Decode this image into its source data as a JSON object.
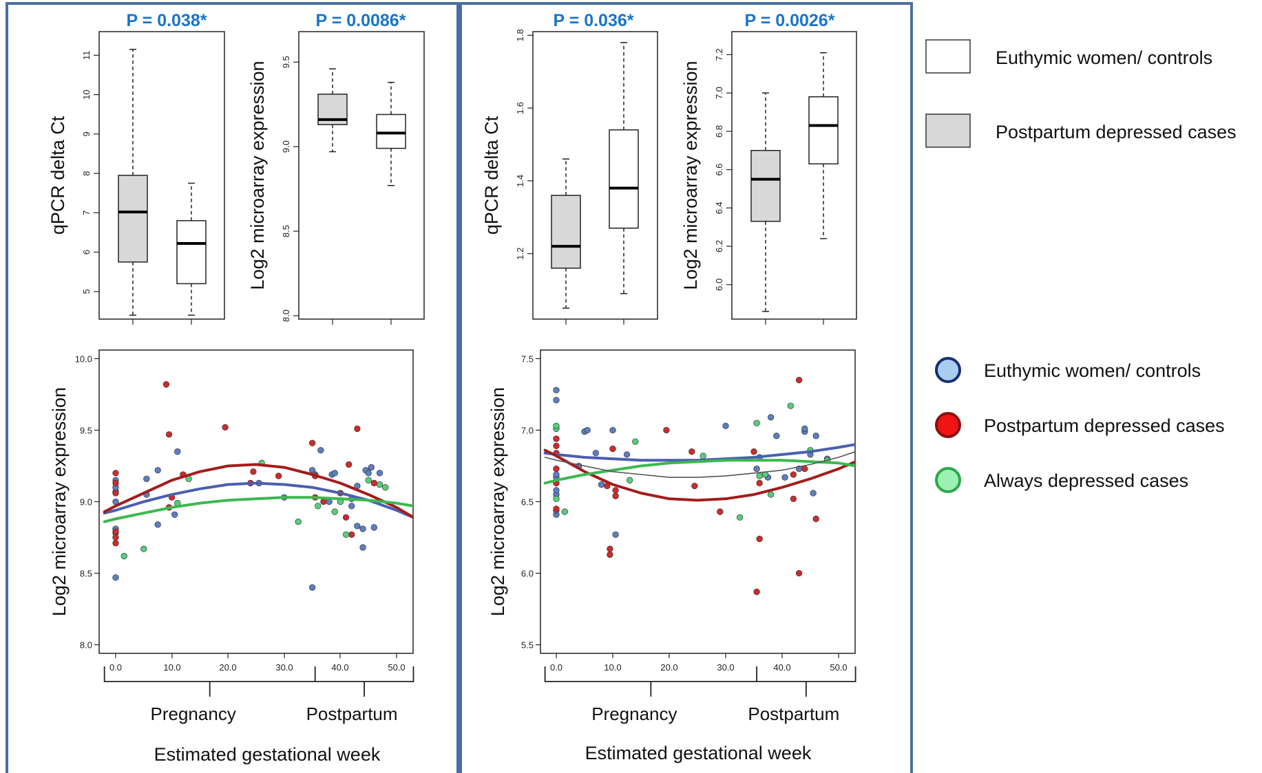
{
  "chart_data": [
    {
      "type": "box",
      "title": "P = 0.038*",
      "ylabel": "qPCR delta Ct",
      "ylim": [
        4.3,
        11.6
      ],
      "yticks": [
        5,
        6,
        7,
        8,
        9,
        10,
        11
      ],
      "boxes": [
        {
          "group": "Postpartum depressed cases",
          "min": 4.4,
          "q1": 5.75,
          "median": 7.02,
          "q3": 7.95,
          "max": 11.15
        },
        {
          "group": "Euthymic women/ controls",
          "min": 4.4,
          "q1": 5.2,
          "median": 6.22,
          "q3": 6.8,
          "max": 7.75
        }
      ]
    },
    {
      "type": "box",
      "title": "P = 0.0086*",
      "ylabel": "Log2 microarray expression",
      "ylim": [
        7.98,
        9.68
      ],
      "yticks": [
        8.0,
        8.5,
        9.0,
        9.5
      ],
      "boxes": [
        {
          "group": "Postpartum depressed cases",
          "min": 8.97,
          "q1": 9.13,
          "median": 9.16,
          "q3": 9.31,
          "max": 9.46
        },
        {
          "group": "Euthymic women/ controls",
          "min": 8.77,
          "q1": 8.99,
          "median": 9.08,
          "q3": 9.19,
          "max": 9.38
        }
      ]
    },
    {
      "type": "box",
      "title": "P = 0.036*",
      "ylabel": "qPCR delta Ct",
      "ylim": [
        1.02,
        1.81
      ],
      "yticks": [
        1.2,
        1.4,
        1.6,
        1.8
      ],
      "boxes": [
        {
          "group": "Postpartum depressed cases",
          "min": 1.05,
          "q1": 1.16,
          "median": 1.22,
          "q3": 1.36,
          "max": 1.46
        },
        {
          "group": "Euthymic women/ controls",
          "min": 1.09,
          "q1": 1.27,
          "median": 1.38,
          "q3": 1.54,
          "max": 1.78
        }
      ]
    },
    {
      "type": "box",
      "title": "P = 0.0026*",
      "ylabel": "Log2 microarray expression",
      "ylim": [
        5.82,
        7.32
      ],
      "yticks": [
        6.0,
        6.2,
        6.4,
        6.6,
        6.8,
        7.0,
        7.2
      ],
      "boxes": [
        {
          "group": "Postpartum depressed cases",
          "min": 5.86,
          "q1": 6.33,
          "median": 6.55,
          "q3": 6.7,
          "max": 7.0
        },
        {
          "group": "Euthymic women/ controls",
          "min": 6.24,
          "q1": 6.63,
          "median": 6.83,
          "q3": 6.98,
          "max": 7.21
        }
      ]
    },
    {
      "type": "scatter",
      "xlabel": "Estimated gestational week",
      "ylabel": "Log2 microarray expression",
      "xlim": [
        -2.5,
        53
      ],
      "ylim": [
        7.94,
        10.06
      ],
      "xticks": [
        "0.0",
        "10.0",
        "20.0",
        "30.0",
        "40.0",
        "50.0"
      ],
      "yticks": [
        "8.0",
        "8.5",
        "9.0",
        "9.5",
        "10.0"
      ],
      "periods": [
        {
          "label": "Pregnancy",
          "start": -2,
          "end": 35.5
        },
        {
          "label": "Postpartum",
          "start": 35.5,
          "end": 53
        }
      ],
      "series": [
        {
          "name": "Euthymic women/ controls",
          "color": "#5b7fc2",
          "points": [
            [
              0,
              8.47
            ],
            [
              0,
              8.78
            ],
            [
              0,
              8.81
            ],
            [
              0,
              9.0
            ],
            [
              0,
              9.07
            ],
            [
              0,
              9.1
            ],
            [
              0,
              9.15
            ],
            [
              5.5,
              9.05
            ],
            [
              5.5,
              9.16
            ],
            [
              7.5,
              8.84
            ],
            [
              7.5,
              9.22
            ],
            [
              10.5,
              8.91
            ],
            [
              11,
              9.35
            ],
            [
              25.5,
              9.13
            ],
            [
              30,
              9.03
            ],
            [
              35,
              8.4
            ],
            [
              35,
              9.22
            ],
            [
              35.5,
              9.19
            ],
            [
              36.5,
              9.36
            ],
            [
              38,
              9.0
            ],
            [
              38.5,
              9.19
            ],
            [
              39,
              9.2
            ],
            [
              42,
              8.97
            ],
            [
              42,
              9.02
            ],
            [
              43,
              8.83
            ],
            [
              43,
              9.11
            ],
            [
              44,
              8.68
            ],
            [
              44,
              8.81
            ],
            [
              44.5,
              9.22
            ],
            [
              45,
              9.2
            ],
            [
              45.5,
              9.24
            ],
            [
              46,
              8.82
            ],
            [
              47,
              9.2
            ]
          ]
        },
        {
          "name": "Postpartum depressed cases",
          "color": "#d02a2a",
          "points": [
            [
              0,
              8.71
            ],
            [
              0,
              8.75
            ],
            [
              0,
              8.79
            ],
            [
              0,
              9.06
            ],
            [
              0,
              9.13
            ],
            [
              0,
              9.2
            ],
            [
              9,
              9.82
            ],
            [
              9.5,
              9.47
            ],
            [
              9.5,
              8.96
            ],
            [
              10,
              9.03
            ],
            [
              12,
              9.19
            ],
            [
              19.5,
              9.52
            ],
            [
              24,
              9.13
            ],
            [
              24.5,
              9.21
            ],
            [
              29,
              9.18
            ],
            [
              35,
              9.41
            ],
            [
              35.5,
              9.18
            ],
            [
              35.5,
              9.03
            ],
            [
              37,
              9.0
            ],
            [
              40,
              9.06
            ],
            [
              41,
              8.89
            ],
            [
              41.5,
              9.26
            ],
            [
              42,
              8.77
            ],
            [
              43,
              9.51
            ],
            [
              46,
              9.13
            ]
          ]
        },
        {
          "name": "Always depressed cases",
          "color": "#55d07a",
          "points": [
            [
              1.5,
              8.62
            ],
            [
              5,
              8.67
            ],
            [
              11,
              8.99
            ],
            [
              13,
              9.16
            ],
            [
              26,
              9.27
            ],
            [
              32.5,
              8.86
            ],
            [
              36,
              8.97
            ],
            [
              39,
              8.93
            ],
            [
              40,
              9.0
            ],
            [
              41,
              8.77
            ],
            [
              45,
              9.15
            ],
            [
              47,
              9.12
            ],
            [
              48,
              9.1
            ]
          ]
        }
      ],
      "curves": [
        {
          "name": "Euthymic women/ controls",
          "color": "#4a5fb0",
          "x": [
            -2,
            0,
            5,
            10,
            15,
            20,
            25,
            30,
            35,
            40,
            45,
            50,
            53
          ],
          "y": [
            8.92,
            8.94,
            9.0,
            9.05,
            9.09,
            9.12,
            9.13,
            9.12,
            9.1,
            9.06,
            9.01,
            8.94,
            8.89
          ]
        },
        {
          "name": "Postpartum depressed cases",
          "color": "#a31c1c",
          "x": [
            -2,
            0,
            5,
            10,
            15,
            20,
            25,
            30,
            35,
            40,
            45,
            50,
            53
          ],
          "y": [
            8.93,
            8.97,
            9.06,
            9.15,
            9.21,
            9.25,
            9.26,
            9.24,
            9.19,
            9.13,
            9.05,
            8.96,
            8.89
          ]
        },
        {
          "name": "Always depressed cases",
          "color": "#3cb84e",
          "x": [
            -2,
            0,
            5,
            10,
            15,
            20,
            25,
            30,
            35,
            40,
            45,
            50,
            53
          ],
          "y": [
            8.86,
            8.88,
            8.92,
            8.96,
            8.99,
            9.01,
            9.02,
            9.03,
            9.03,
            9.02,
            9.01,
            8.99,
            8.97
          ]
        }
      ]
    },
    {
      "type": "scatter",
      "xlabel": "Estimated gestational week",
      "ylabel": "Log2 microarray expression",
      "xlim": [
        -2.5,
        53
      ],
      "ylim": [
        5.44,
        7.56
      ],
      "xticks": [
        "0.0",
        "10.0",
        "20.0",
        "30.0",
        "40.0",
        "50.0"
      ],
      "yticks": [
        "5.5",
        "6.0",
        "6.5",
        "7.0",
        "7.5"
      ],
      "periods": [
        {
          "label": "Pregnancy",
          "start": -2,
          "end": 35.5
        },
        {
          "label": "Postpartum",
          "start": 35.5,
          "end": 53
        }
      ],
      "series": [
        {
          "name": "Euthymic women/ controls",
          "color": "#5b7fc2",
          "points": [
            [
              0,
              6.41
            ],
            [
              0,
              6.44
            ],
            [
              0,
              6.55
            ],
            [
              0,
              6.58
            ],
            [
              0,
              6.67
            ],
            [
              0,
              6.69
            ],
            [
              0,
              7.21
            ],
            [
              0,
              7.28
            ],
            [
              4,
              6.75
            ],
            [
              5,
              6.99
            ],
            [
              5.5,
              7.0
            ],
            [
              7,
              6.84
            ],
            [
              8,
              6.62
            ],
            [
              10,
              7.0
            ],
            [
              10.5,
              6.27
            ],
            [
              12.5,
              6.83
            ],
            [
              30,
              7.03
            ],
            [
              35.5,
              6.73
            ],
            [
              36,
              6.81
            ],
            [
              37.5,
              6.67
            ],
            [
              38,
              7.09
            ],
            [
              39,
              6.96
            ],
            [
              40.5,
              6.67
            ],
            [
              43,
              6.73
            ],
            [
              44,
              6.99
            ],
            [
              44,
              7.01
            ],
            [
              45,
              6.83
            ],
            [
              45.5,
              6.56
            ],
            [
              46,
              6.96
            ],
            [
              48,
              6.8
            ]
          ]
        },
        {
          "name": "Postpartum depressed cases",
          "color": "#d02a2a",
          "points": [
            [
              0,
              6.45
            ],
            [
              0,
              6.63
            ],
            [
              0,
              6.73
            ],
            [
              0,
              6.84
            ],
            [
              0,
              6.89
            ],
            [
              0,
              6.94
            ],
            [
              9,
              6.61
            ],
            [
              9.5,
              6.17
            ],
            [
              9.5,
              6.13
            ],
            [
              10,
              6.87
            ],
            [
              10.5,
              6.58
            ],
            [
              10.5,
              6.54
            ],
            [
              19.5,
              7.0
            ],
            [
              24,
              6.85
            ],
            [
              24.5,
              6.61
            ],
            [
              29,
              6.43
            ],
            [
              35,
              6.85
            ],
            [
              35.5,
              5.87
            ],
            [
              36,
              6.63
            ],
            [
              36,
              6.24
            ],
            [
              42,
              6.69
            ],
            [
              42,
              6.52
            ],
            [
              43,
              7.35
            ],
            [
              43,
              6.0
            ],
            [
              44,
              6.73
            ],
            [
              46,
              6.38
            ]
          ]
        },
        {
          "name": "Always depressed cases",
          "color": "#55d07a",
          "points": [
            [
              0,
              6.52
            ],
            [
              0,
              7.01
            ],
            [
              0,
              7.03
            ],
            [
              1.5,
              6.43
            ],
            [
              13,
              6.65
            ],
            [
              14,
              6.92
            ],
            [
              26,
              6.82
            ],
            [
              32.5,
              6.39
            ],
            [
              35.5,
              7.05
            ],
            [
              36,
              6.68
            ],
            [
              37,
              6.69
            ],
            [
              38,
              6.55
            ],
            [
              41.5,
              7.17
            ],
            [
              45,
              6.86
            ],
            [
              48,
              6.79
            ]
          ]
        }
      ],
      "curves": [
        {
          "name": "Euthymic women/ controls",
          "color": "#4a5fb0",
          "x": [
            -2,
            0,
            5,
            10,
            15,
            20,
            25,
            30,
            35,
            40,
            45,
            50,
            53
          ],
          "y": [
            6.84,
            6.83,
            6.81,
            6.8,
            6.79,
            6.79,
            6.79,
            6.8,
            6.81,
            6.83,
            6.85,
            6.88,
            6.9
          ]
        },
        {
          "name": "Postpartum depressed cases",
          "color": "#a31c1c",
          "x": [
            -2,
            0,
            5,
            10,
            15,
            20,
            25,
            30,
            35,
            40,
            45,
            50,
            53
          ],
          "y": [
            6.86,
            6.82,
            6.71,
            6.62,
            6.56,
            6.52,
            6.51,
            6.52,
            6.55,
            6.6,
            6.66,
            6.73,
            6.78
          ]
        },
        {
          "name": "Always depressed cases",
          "color": "#3cb84e",
          "x": [
            -2,
            0,
            5,
            10,
            15,
            20,
            25,
            30,
            35,
            40,
            45,
            50,
            53
          ],
          "y": [
            6.63,
            6.65,
            6.69,
            6.72,
            6.75,
            6.77,
            6.78,
            6.79,
            6.79,
            6.79,
            6.78,
            6.77,
            6.75
          ]
        },
        {
          "name": "",
          "color": "#555555",
          "x": [
            -2,
            0,
            5,
            10,
            15,
            20,
            25,
            30,
            35,
            40,
            45,
            50,
            53
          ],
          "y": [
            6.81,
            6.79,
            6.75,
            6.71,
            6.69,
            6.67,
            6.67,
            6.68,
            6.7,
            6.72,
            6.76,
            6.81,
            6.85
          ]
        }
      ]
    }
  ],
  "legend_boxes": [
    {
      "label": "Euthymic women/ controls",
      "fill": "#ffffff"
    },
    {
      "label": "Postpartum depressed cases",
      "fill": "#d8d8d8"
    }
  ],
  "legend_points": [
    {
      "label": "Euthymic women/ controls",
      "fill": "#a9cdf0",
      "stroke": "#13306e"
    },
    {
      "label": "Postpartum depressed cases",
      "fill": "#f01414",
      "stroke": "#8a1010"
    },
    {
      "label": "Always depressed cases",
      "fill": "#9cf0b2",
      "stroke": "#2aa748"
    }
  ]
}
